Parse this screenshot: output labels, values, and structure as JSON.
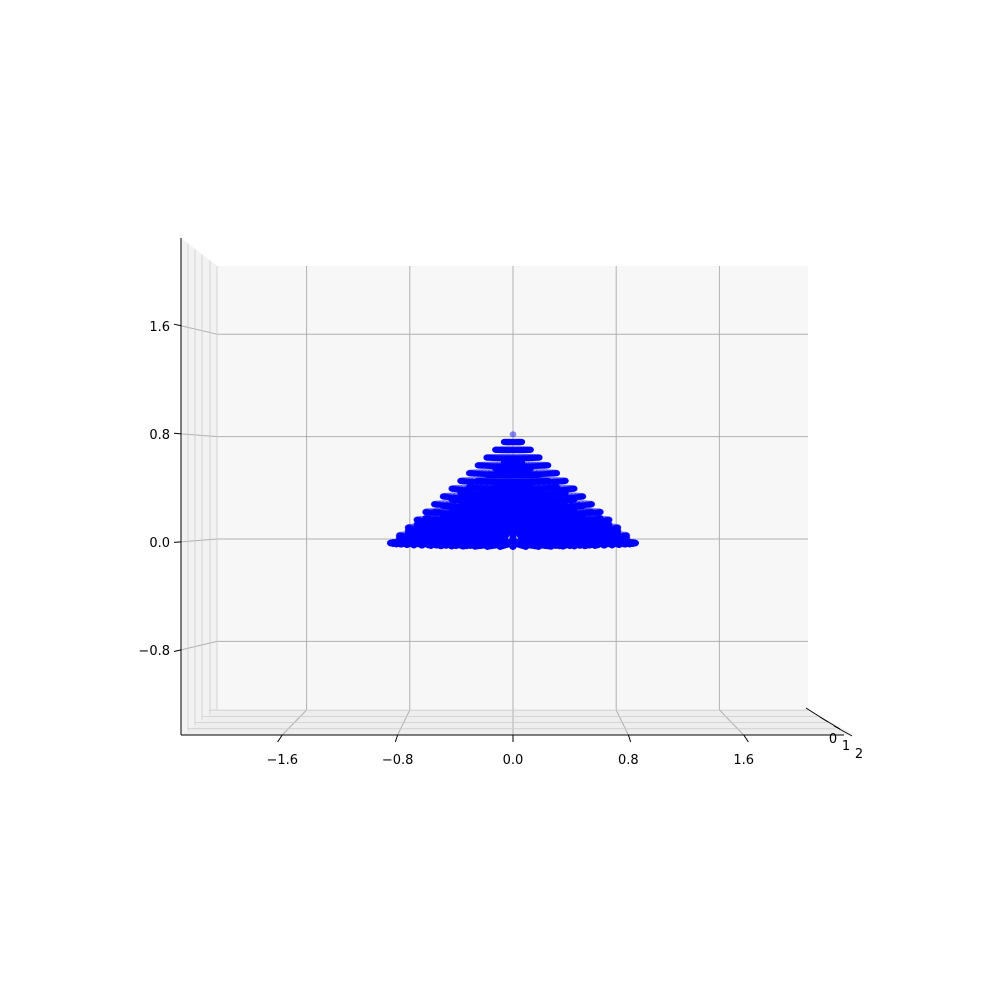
{
  "chart_data": {
    "type": "scatter",
    "projection": "3d",
    "view": "front, nearly edge-on to the y axis",
    "title": "",
    "xlabel": "",
    "ylabel": "",
    "zlabel": "",
    "x_ticks": [
      "−1.6",
      "−0.8",
      "0.0",
      "0.8",
      "1.6"
    ],
    "y_ticks": [
      "0",
      "1",
      "2"
    ],
    "z_ticks": [
      "−0.8",
      "0.0",
      "0.8",
      "1.6"
    ],
    "xlim": [
      -2.3,
      2.3
    ],
    "zlim": [
      -1.3,
      2.1
    ],
    "grid": true,
    "marker_color": "#0000ff",
    "pane_color": "#f7f7f7",
    "grid_color": "#b0b0b0",
    "surface": {
      "shape": "cone",
      "apex_height": 0.85,
      "base_radius": 0.95,
      "radial_levels": 14,
      "angular_samples": 60,
      "points_per_column": 6
    }
  }
}
